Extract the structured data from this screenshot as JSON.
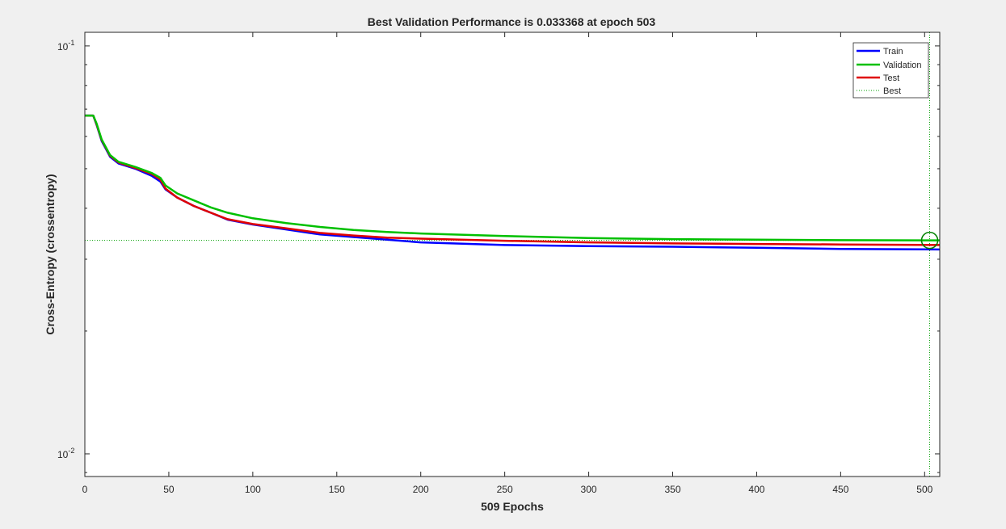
{
  "chart_data": {
    "type": "line",
    "title": "Best Validation Performance is 0.033368 at epoch 503",
    "xlabel": "509 Epochs",
    "ylabel": "Cross-Entropy  (crossentropy)",
    "xlim": [
      0,
      509
    ],
    "ylim": [
      0.0088,
      0.108
    ],
    "yscale": "log",
    "x_ticks": [
      0,
      50,
      100,
      150,
      200,
      250,
      300,
      350,
      400,
      450,
      500
    ],
    "y_ticks": [
      {
        "value": 0.1,
        "base": "10",
        "exp": "-1"
      },
      {
        "value": 0.01,
        "base": "10",
        "exp": "-2"
      }
    ],
    "grid": false,
    "legend_position": "top-right",
    "best": {
      "epoch": 503,
      "value": 0.033368
    },
    "series": [
      {
        "name": "Train",
        "color": "#0000ff",
        "x": [
          0,
          5,
          7,
          10,
          15,
          20,
          30,
          40,
          45,
          48,
          55,
          65,
          75,
          85,
          100,
          120,
          140,
          160,
          180,
          200,
          250,
          300,
          350,
          400,
          450,
          509
        ],
        "y": [
          0.0675,
          0.0675,
          0.064,
          0.0585,
          0.0535,
          0.0515,
          0.05,
          0.048,
          0.0465,
          0.0445,
          0.0425,
          0.0405,
          0.039,
          0.0375,
          0.0365,
          0.0355,
          0.0345,
          0.034,
          0.0335,
          0.033,
          0.0325,
          0.0323,
          0.0322,
          0.032,
          0.0318,
          0.0317
        ]
      },
      {
        "name": "Validation",
        "color": "#00c000",
        "x": [
          0,
          5,
          7,
          10,
          15,
          20,
          30,
          40,
          45,
          48,
          55,
          65,
          75,
          85,
          100,
          120,
          140,
          160,
          180,
          200,
          250,
          300,
          350,
          400,
          450,
          509
        ],
        "y": [
          0.0675,
          0.0675,
          0.0645,
          0.059,
          0.054,
          0.052,
          0.0505,
          0.0488,
          0.0475,
          0.0455,
          0.0435,
          0.0418,
          0.0402,
          0.039,
          0.0378,
          0.0368,
          0.036,
          0.0354,
          0.035,
          0.0347,
          0.0342,
          0.0338,
          0.0336,
          0.0335,
          0.0334,
          0.03337
        ]
      },
      {
        "name": "Test",
        "color": "#e00000",
        "x": [
          0,
          5,
          7,
          10,
          15,
          20,
          30,
          40,
          45,
          48,
          55,
          65,
          75,
          85,
          100,
          120,
          140,
          160,
          180,
          200,
          250,
          300,
          350,
          400,
          450,
          509
        ],
        "y": [
          0.0675,
          0.0675,
          0.0642,
          0.0588,
          0.0538,
          0.0518,
          0.0502,
          0.0485,
          0.047,
          0.0447,
          0.0425,
          0.0405,
          0.039,
          0.0376,
          0.0366,
          0.0357,
          0.0348,
          0.0343,
          0.0339,
          0.0337,
          0.0333,
          0.033,
          0.0328,
          0.0327,
          0.0326,
          0.0325
        ]
      }
    ],
    "legend": {
      "train": "Train",
      "validation": "Validation",
      "test": "Test",
      "best": "Best"
    }
  }
}
